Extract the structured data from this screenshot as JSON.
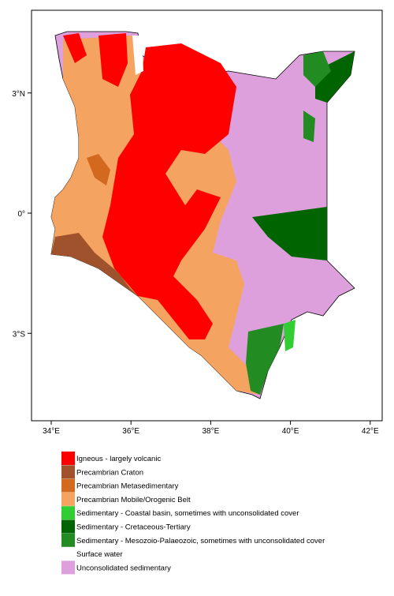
{
  "map": {
    "x_ticks": [
      {
        "value": 34,
        "label": "34°E"
      },
      {
        "value": 36,
        "label": "36°E"
      },
      {
        "value": 38,
        "label": "38°E"
      },
      {
        "value": 40,
        "label": "40°E"
      },
      {
        "value": 42,
        "label": "42°E"
      }
    ],
    "y_ticks": [
      {
        "value": 3,
        "label": "3°N"
      },
      {
        "value": 0,
        "label": "0°"
      },
      {
        "value": -3,
        "label": "3°S"
      }
    ],
    "legend": [
      {
        "label": "Igneous - largely volcanic",
        "color": "#ff0000"
      },
      {
        "label": "Precambrian Craton",
        "color": "#a0522d"
      },
      {
        "label": "Precambrian Metasedimentary",
        "color": "#d2691e"
      },
      {
        "label": "Precambrian Mobile/Orogenic Belt",
        "color": "#f4a460"
      },
      {
        "label": "Sedimentary - Coastal basin, sometimes with unconsolidated cover",
        "color": "#32cd32"
      },
      {
        "label": "Sedimentary - Cretaceous-Tertiary",
        "color": "#006400"
      },
      {
        "label": "Sedimentary - Mesozoio-Palaeozoic, sometimes with unconsolidated cover",
        "color": "#228b22"
      },
      {
        "label": "Surface water",
        "color": "#ffffff"
      },
      {
        "label": "Unconsolidated sedimentary",
        "color": "#dda0dd"
      }
    ]
  }
}
